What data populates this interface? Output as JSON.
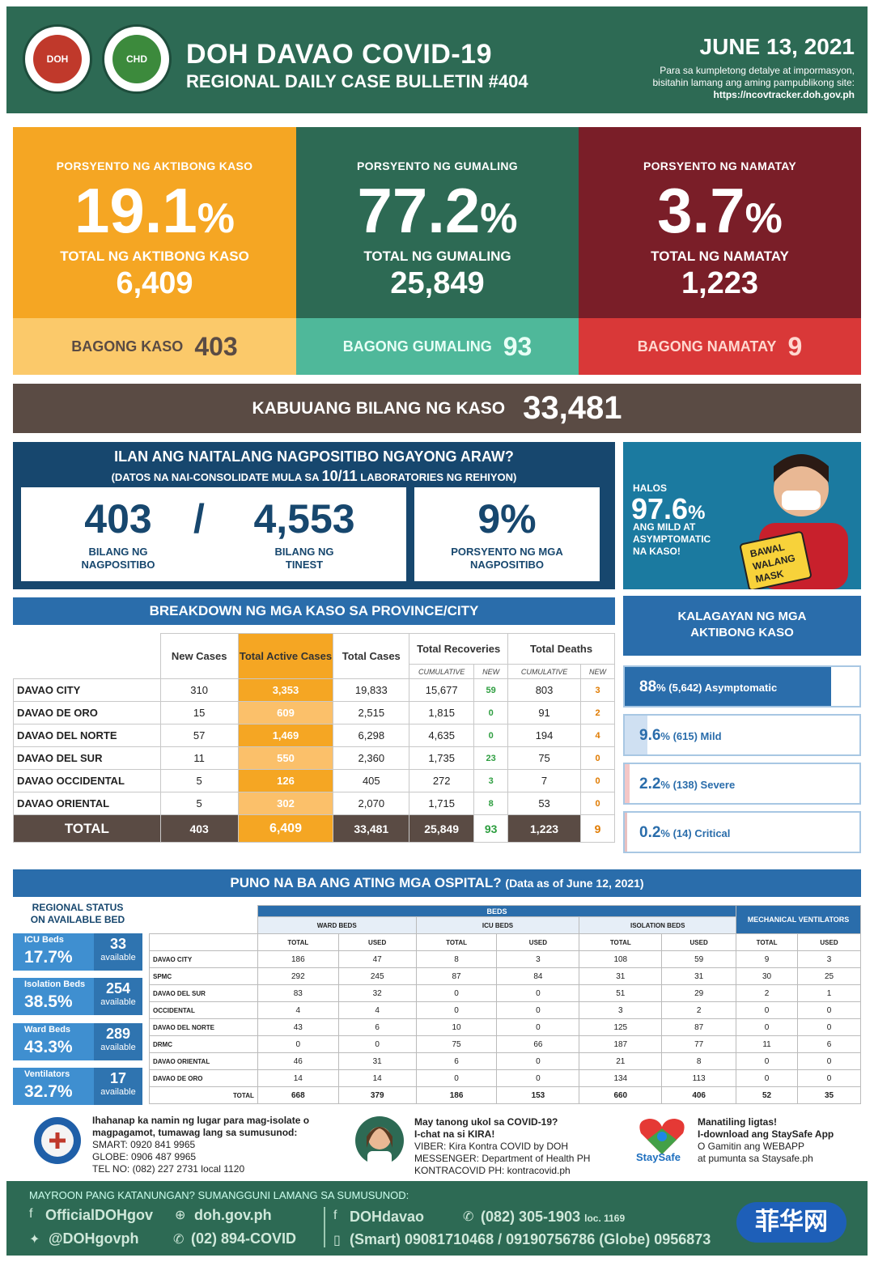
{
  "header": {
    "seal1": "DOH",
    "seal2": "CHD",
    "title": "DOH DAVAO COVID-19",
    "subtitle": "REGIONAL DAILY CASE BULLETIN #404",
    "date": "JUNE 13, 2021",
    "note1": "Para sa kumpletong detalye at impormasyon,",
    "note2": "bisitahin lamang ang aming pampublikong site:",
    "url": "https://ncovtracker.doh.gov.ph"
  },
  "stats": {
    "active": {
      "label": "PORSYENTO NG AKTIBONG KASO",
      "pct": "19.1",
      "total_label": "TOTAL  NG AKTIBONG KASO",
      "total": "6,409",
      "new_label": "BAGONG KASO",
      "new": "403"
    },
    "recovered": {
      "label": "PORSYENTO NG GUMALING",
      "pct": "77.2",
      "total_label": "TOTAL  NG GUMALING",
      "total": "25,849",
      "new_label": "BAGONG GUMALING",
      "new": "93"
    },
    "died": {
      "label": "PORSYENTO NG NAMATAY",
      "pct": "3.7",
      "total_label": "TOTAL  NG NAMATAY",
      "total": "1,223",
      "new_label": "BAGONG NAMATAY",
      "new": "9"
    },
    "pct_sign": "%",
    "kabuuan_label": "KABUUANG BILANG NG KASO",
    "kabuuan": "33,481"
  },
  "positivity": {
    "question": "ILAN ANG NAITALANG NAGPOSITIBO NGAYONG ARAW?",
    "sub_pre": "(DATOS NA NAI-CONSOLIDATE MULA SA",
    "sub_labs": "10/11",
    "sub_post": "LABORATORIES NG REHIYON)",
    "positive": "403",
    "positive_label1": "BILANG NG",
    "positive_label2": "NAGPOSITIBO",
    "slash": "/",
    "tested": "4,553",
    "tested_label1": "BILANG NG",
    "tested_label2": "TINEST",
    "rate": "9%",
    "rate_label1": "PORSYENTO NG MGA",
    "rate_label2": "NAGPOSITIBO"
  },
  "mask": {
    "halos": "HALOS",
    "pct": "97.6",
    "pct_sign": "%",
    "l1": "ANG MILD AT",
    "l2": "ASYMPTOMATIC",
    "l3": "NA KASO!",
    "sign1": "BAWAL",
    "sign2": "WALANG",
    "sign3": "MASK"
  },
  "breakdown": {
    "title": "BREAKDOWN NG MGA KASO SA PROVINCE/CITY",
    "headers": {
      "new": "New Cases",
      "active": "Total Active Cases",
      "total": "Total Cases",
      "rec": "Total Recoveries",
      "deaths": "Total Deaths",
      "cum": "CUMULATIVE",
      "new_sub": "NEW"
    },
    "rows": [
      {
        "name": "DAVAO CITY",
        "new": "310",
        "active": "3,353",
        "total": "19,833",
        "rec": "15,677",
        "rec_new": "59",
        "deaths": "803",
        "deaths_new": "3"
      },
      {
        "name": "DAVAO DE ORO",
        "new": "15",
        "active": "609",
        "total": "2,515",
        "rec": "1,815",
        "rec_new": "0",
        "deaths": "91",
        "deaths_new": "2"
      },
      {
        "name": "DAVAO DEL NORTE",
        "new": "57",
        "active": "1,469",
        "total": "6,298",
        "rec": "4,635",
        "rec_new": "0",
        "deaths": "194",
        "deaths_new": "4"
      },
      {
        "name": "DAVAO DEL SUR",
        "new": "11",
        "active": "550",
        "total": "2,360",
        "rec": "1,735",
        "rec_new": "23",
        "deaths": "75",
        "deaths_new": "0"
      },
      {
        "name": "DAVAO OCCIDENTAL",
        "new": "5",
        "active": "126",
        "total": "405",
        "rec": "272",
        "rec_new": "3",
        "deaths": "7",
        "deaths_new": "0"
      },
      {
        "name": "DAVAO ORIENTAL",
        "new": "5",
        "active": "302",
        "total": "2,070",
        "rec": "1,715",
        "rec_new": "8",
        "deaths": "53",
        "deaths_new": "0"
      }
    ],
    "total": {
      "name": "TOTAL",
      "new": "403",
      "active": "6,409",
      "total": "33,481",
      "rec": "25,849",
      "rec_new": "93",
      "deaths": "1,223",
      "deaths_new": "9"
    }
  },
  "active_status": {
    "title1": "KALAGAYAN NG MGA",
    "title2": "AKTIBONG KASO",
    "items": [
      {
        "pct": "88",
        "fraction": 0.88,
        "rest": "% (5,642) Asymptomatic",
        "color": "#2a6dab"
      },
      {
        "pct": "9.6",
        "fraction": 0.096,
        "rest": "% (615) Mild",
        "color": "#cfe0f2"
      },
      {
        "pct": "2.2",
        "fraction": 0.022,
        "rest": "% (138) Severe",
        "color": "#f4c7c7"
      },
      {
        "pct": "0.2",
        "fraction": 0.002,
        "rest": "% (14) Critical",
        "color": "#e9c0c0"
      }
    ]
  },
  "hospital": {
    "title": "PUNO NA BA ANG ATING MGA OSPITAL?",
    "title_note": "(Data as of June 12, 2021)",
    "regional_title1": "REGIONAL STATUS",
    "regional_title2": "ON AVAILABLE BED",
    "regional": [
      {
        "name": "ICU Beds",
        "pct": "17.7%",
        "avail": "33",
        "unit": "available"
      },
      {
        "name": "Isolation Beds",
        "pct": "38.5%",
        "avail": "254",
        "unit": "available"
      },
      {
        "name": "Ward Beds",
        "pct": "43.3%",
        "avail": "289",
        "unit": "available"
      },
      {
        "name": "Ventilators",
        "pct": "32.7%",
        "avail": "17",
        "unit": "available"
      }
    ],
    "headers": {
      "beds": "BEDS",
      "ward": "WARD BEDS",
      "icu": "ICU BEDS",
      "iso": "ISOLATION BEDS",
      "vent": "MECHANICAL VENTILATORS",
      "total": "TOTAL",
      "used": "USED"
    },
    "rows": [
      {
        "name": "DAVAO CITY",
        "v": [
          "186",
          "47",
          "8",
          "3",
          "108",
          "59",
          "9",
          "3"
        ]
      },
      {
        "name": "SPMC",
        "v": [
          "292",
          "245",
          "87",
          "84",
          "31",
          "31",
          "30",
          "25"
        ]
      },
      {
        "name": "DAVAO DEL SUR",
        "v": [
          "83",
          "32",
          "0",
          "0",
          "51",
          "29",
          "2",
          "1"
        ]
      },
      {
        "name": "OCCIDENTAL",
        "v": [
          "4",
          "4",
          "0",
          "0",
          "3",
          "2",
          "0",
          "0"
        ]
      },
      {
        "name": "DAVAO DEL NORTE",
        "v": [
          "43",
          "6",
          "10",
          "0",
          "125",
          "87",
          "0",
          "0"
        ]
      },
      {
        "name": "DRMC",
        "v": [
          "0",
          "0",
          "75",
          "66",
          "187",
          "77",
          "11",
          "6"
        ]
      },
      {
        "name": "DAVAO ORIENTAL",
        "v": [
          "46",
          "31",
          "6",
          "0",
          "21",
          "8",
          "0",
          "0"
        ]
      },
      {
        "name": "DAVAO DE ORO",
        "v": [
          "14",
          "14",
          "0",
          "0",
          "134",
          "113",
          "0",
          "0"
        ]
      }
    ],
    "total": {
      "name": "TOTAL",
      "v": [
        "668",
        "379",
        "186",
        "153",
        "660",
        "406",
        "52",
        "35"
      ]
    }
  },
  "contacts": {
    "c1": [
      "Ihahanap ka namin ng lugar para mag-isolate o",
      "magpagamot, tumawag lang sa sumusunod:",
      "SMART: 0920 841 9965",
      "GLOBE: 0906 487 9965",
      "TEL NO: (082) 227 2731 local 1120"
    ],
    "c2": [
      "May tanong ukol sa COVID-19?",
      "I-chat na si KIRA!",
      "VIBER: Kira Kontra COVID by DOH",
      "MESSENGER: Department of Health PH",
      "KONTRACOVID PH: kontracovid.ph"
    ],
    "c3": [
      "Manatiling ligtas!",
      "I-download ang StaySafe App",
      "O Gamitin ang WEBAPP",
      "at pumunta sa Staysafe.ph"
    ],
    "staysafe": "StaySafe"
  },
  "footer": {
    "question": "MAYROON PANG KATANUNGAN? SUMANGGUNI LAMANG SA SUMUSUNOD:",
    "fb1": "OfficialDOHgov",
    "web": "doh.gov.ph",
    "fb2": "DOHdavao",
    "phone1": "(082) 305-1903",
    "loc": "loc. 1169",
    "tw": "@DOHgovph",
    "phone2": "(02) 894-COVID",
    "smart": "(Smart) 09081710468 / 09190756786  (Globe) 0956873",
    "watermark": "菲华网"
  }
}
